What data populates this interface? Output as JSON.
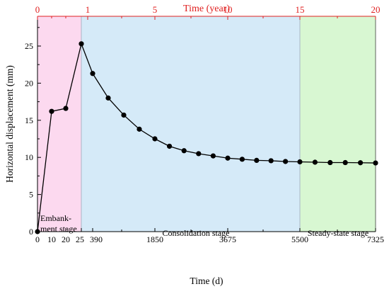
{
  "chart_data": {
    "type": "line",
    "title": "",
    "xlabel": "Time (d)",
    "ylabel": "Horizontal displacement (mm)",
    "top_axis_label": "Time (year)",
    "ylim": [
      0,
      28
    ],
    "bottom_ticks": [
      "0",
      "10",
      "20",
      "25",
      "390",
      "1850",
      "3675",
      "5500",
      "7325"
    ],
    "left_ticks": [
      "0",
      "5",
      "10",
      "15",
      "20",
      "25"
    ],
    "top_ticks": [
      "0",
      "1",
      "5",
      "10",
      "15",
      "20"
    ],
    "stages": [
      {
        "name": "embankment",
        "label_lines": [
          "Embank-",
          "ment stage"
        ],
        "from_day": 0,
        "to_day": 25,
        "color": "#fcd9ef"
      },
      {
        "name": "consolidation",
        "label_lines": [
          "Consolidation stage"
        ],
        "from_day": 25,
        "to_day": 5500,
        "color": "#d5eaf8"
      },
      {
        "name": "steady",
        "label_lines": [
          "Steady-state stage"
        ],
        "from_day": 5500,
        "to_day": 7325,
        "color": "#d8f7d2"
      }
    ],
    "series": [
      {
        "color": "#000000",
        "points": [
          {
            "x": 0,
            "y": 0.0
          },
          {
            "x": 10,
            "y": 16.2
          },
          {
            "x": 20,
            "y": 16.6
          },
          {
            "x": 25,
            "y": 25.3
          },
          {
            "x": 390,
            "y": 21.3
          },
          {
            "x": 755,
            "y": 18.0
          },
          {
            "x": 1120,
            "y": 15.7
          },
          {
            "x": 1485,
            "y": 13.8
          },
          {
            "x": 1850,
            "y": 12.5
          },
          {
            "x": 2215,
            "y": 11.5
          },
          {
            "x": 2580,
            "y": 10.9
          },
          {
            "x": 2945,
            "y": 10.5
          },
          {
            "x": 3310,
            "y": 10.2
          },
          {
            "x": 3675,
            "y": 9.9
          },
          {
            "x": 4040,
            "y": 9.75
          },
          {
            "x": 4405,
            "y": 9.6
          },
          {
            "x": 4770,
            "y": 9.55
          },
          {
            "x": 5135,
            "y": 9.45
          },
          {
            "x": 5500,
            "y": 9.4
          },
          {
            "x": 5865,
            "y": 9.35
          },
          {
            "x": 6230,
            "y": 9.3
          },
          {
            "x": 6595,
            "y": 9.3
          },
          {
            "x": 6960,
            "y": 9.28
          },
          {
            "x": 7325,
            "y": 9.25
          }
        ]
      }
    ]
  }
}
